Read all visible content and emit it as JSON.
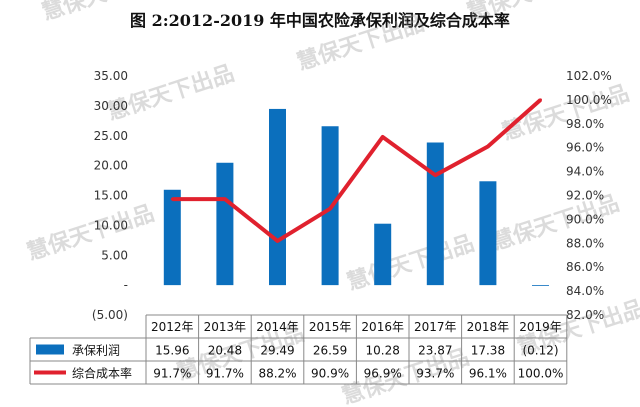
{
  "chart_data": {
    "type": "bar",
    "title": "图 2:2012-2019 年中国农险承保利润及综合成本率",
    "categories": [
      "2012年",
      "2013年",
      "2014年",
      "2015年",
      "2016年",
      "2017年",
      "2018年",
      "2019年"
    ],
    "series": [
      {
        "name": "承保利润",
        "type": "bar",
        "axis": "left",
        "color": "#0b6fbd",
        "values": [
          15.96,
          20.48,
          29.49,
          26.59,
          10.28,
          23.87,
          17.38,
          -0.12
        ],
        "labels": [
          "15.96",
          "20.48",
          "29.49",
          "26.59",
          "10.28",
          "23.87",
          "17.38",
          "(0.12)"
        ]
      },
      {
        "name": "综合成本率",
        "type": "line",
        "axis": "right",
        "color": "#e0212e",
        "values": [
          91.7,
          91.7,
          88.2,
          90.9,
          96.9,
          93.7,
          96.1,
          100.0
        ],
        "labels": [
          "91.7%",
          "91.7%",
          "88.2%",
          "90.9%",
          "96.9%",
          "93.7%",
          "96.1%",
          "100.0%"
        ]
      }
    ],
    "left_axis": {
      "range": [
        -5,
        35
      ],
      "ticks": [
        35,
        30,
        25,
        20,
        15,
        10,
        5,
        0,
        -5
      ],
      "tick_labels": [
        "35.00",
        "30.00",
        "25.00",
        "20.00",
        "15.00",
        "10.00",
        "5.00",
        "-",
        "(5.00)"
      ]
    },
    "right_axis": {
      "range": [
        82,
        102
      ],
      "ticks": [
        102,
        100,
        98,
        96,
        94,
        92,
        90,
        88,
        86,
        84,
        82
      ],
      "tick_labels": [
        "102.0%",
        "100.0%",
        "98.0%",
        "96.0%",
        "94.0%",
        "92.0%",
        "90.0%",
        "88.0%",
        "86.0%",
        "84.0%",
        "82.0%"
      ]
    },
    "grid": false,
    "legend": "data-table-left"
  },
  "watermark": "慧保天下出品"
}
